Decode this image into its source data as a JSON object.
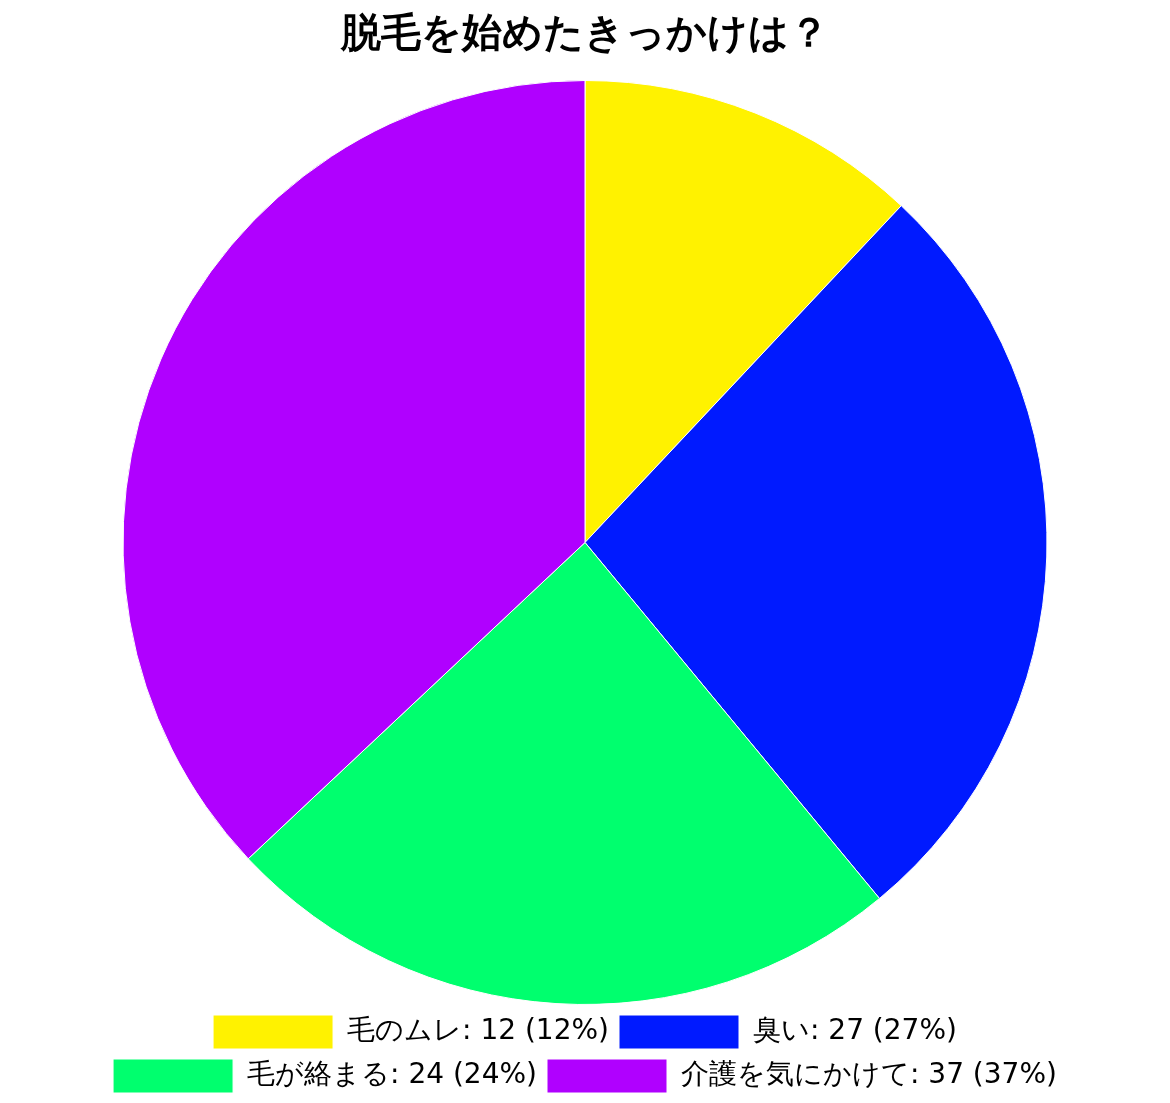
{
  "chart_data": {
    "type": "pie",
    "title": "脱毛を始めたきっかけは？",
    "categories": [
      "毛のムレ: 12 (12%)",
      "臭い: 27 (27%)",
      "毛が絡まる: 24 (24%)",
      "介護を気にかけて: 37 (37%)"
    ],
    "values": [
      12,
      27,
      24,
      37
    ],
    "colors": [
      "#fff200",
      "#001aff",
      "#00ff6e",
      "#b000ff"
    ],
    "legend": "bottom"
  }
}
